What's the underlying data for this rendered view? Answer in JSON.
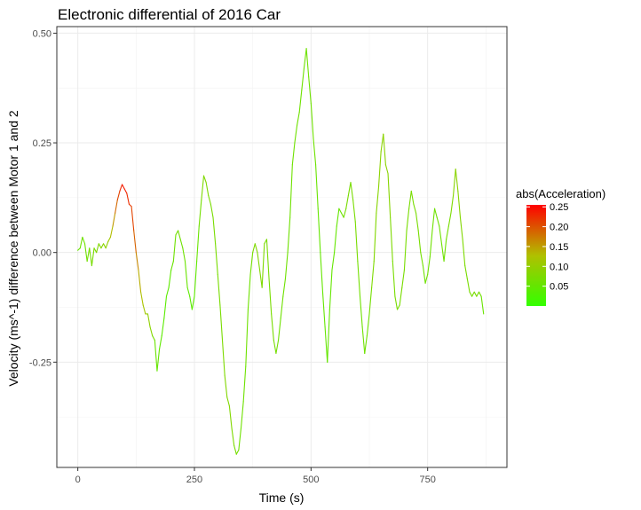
{
  "chart_data": {
    "type": "line",
    "title": "Electronic differential of 2016 Car",
    "xlabel": "Time (s)",
    "ylabel": "Velocity (ms^-1) difference between Motor 1 and 2",
    "xlim": [
      -45,
      920
    ],
    "ylim": [
      -0.49,
      0.515
    ],
    "x_ticks": [
      0,
      250,
      500,
      750
    ],
    "x_tick_labels": [
      "0",
      "250",
      "500",
      "750"
    ],
    "y_ticks": [
      -0.25,
      0.0,
      0.25,
      0.5
    ],
    "y_tick_labels": [
      "-0.25",
      "0.00",
      "0.25",
      "0.50"
    ],
    "grid": true,
    "legend": {
      "title": "abs(Acceleration)",
      "placement": "right",
      "ticks": [
        0.05,
        0.1,
        0.15,
        0.2,
        0.25
      ],
      "tick_labels": [
        "0.05",
        "0.10",
        "0.15",
        "0.20",
        "0.25"
      ],
      "range": [
        0.0,
        0.255
      ],
      "low_color": "#33ff00",
      "mid_color": "#b0c000",
      "high_color": "#ff0000"
    },
    "series": [
      {
        "points": [
          [
            0,
            0.005,
            0.05
          ],
          [
            5,
            0.01,
            0.06
          ],
          [
            10,
            0.035,
            0.06
          ],
          [
            15,
            0.02,
            0.06
          ],
          [
            20,
            -0.02,
            0.06
          ],
          [
            25,
            0.01,
            0.07
          ],
          [
            30,
            -0.03,
            0.07
          ],
          [
            35,
            0.01,
            0.07
          ],
          [
            40,
            0.0,
            0.08
          ],
          [
            45,
            0.02,
            0.08
          ],
          [
            50,
            0.01,
            0.08
          ],
          [
            55,
            0.02,
            0.09
          ],
          [
            60,
            0.01,
            0.09
          ],
          [
            65,
            0.025,
            0.1
          ],
          [
            70,
            0.035,
            0.12
          ],
          [
            75,
            0.06,
            0.14
          ],
          [
            80,
            0.09,
            0.17
          ],
          [
            85,
            0.12,
            0.2
          ],
          [
            90,
            0.14,
            0.22
          ],
          [
            95,
            0.155,
            0.24
          ],
          [
            100,
            0.145,
            0.24
          ],
          [
            105,
            0.135,
            0.23
          ],
          [
            110,
            0.11,
            0.22
          ],
          [
            115,
            0.105,
            0.22
          ],
          [
            120,
            0.05,
            0.2
          ],
          [
            125,
            0.0,
            0.18
          ],
          [
            130,
            -0.04,
            0.15
          ],
          [
            135,
            -0.09,
            0.13
          ],
          [
            140,
            -0.12,
            0.12
          ],
          [
            145,
            -0.14,
            0.11
          ],
          [
            150,
            -0.14,
            0.1
          ],
          [
            155,
            -0.17,
            0.09
          ],
          [
            160,
            -0.19,
            0.08
          ],
          [
            165,
            -0.2,
            0.06
          ],
          [
            170,
            -0.27,
            0.05
          ],
          [
            175,
            -0.22,
            0.05
          ],
          [
            180,
            -0.19,
            0.04
          ],
          [
            185,
            -0.15,
            0.04
          ],
          [
            190,
            -0.1,
            0.04
          ],
          [
            195,
            -0.08,
            0.04
          ],
          [
            200,
            -0.04,
            0.05
          ],
          [
            205,
            -0.02,
            0.06
          ],
          [
            210,
            0.04,
            0.06
          ],
          [
            215,
            0.05,
            0.07
          ],
          [
            220,
            0.03,
            0.06
          ],
          [
            225,
            0.01,
            0.06
          ],
          [
            230,
            -0.02,
            0.06
          ],
          [
            235,
            -0.08,
            0.05
          ],
          [
            240,
            -0.1,
            0.04
          ],
          [
            245,
            -0.13,
            0.04
          ],
          [
            250,
            -0.1,
            0.04
          ],
          [
            255,
            -0.02,
            0.05
          ],
          [
            260,
            0.06,
            0.06
          ],
          [
            265,
            0.12,
            0.07
          ],
          [
            270,
            0.175,
            0.08
          ],
          [
            275,
            0.16,
            0.08
          ],
          [
            280,
            0.13,
            0.07
          ],
          [
            285,
            0.11,
            0.07
          ],
          [
            290,
            0.08,
            0.07
          ],
          [
            295,
            0.02,
            0.07
          ],
          [
            300,
            -0.05,
            0.07
          ],
          [
            305,
            -0.12,
            0.07
          ],
          [
            310,
            -0.2,
            0.07
          ],
          [
            315,
            -0.28,
            0.08
          ],
          [
            320,
            -0.33,
            0.08
          ],
          [
            325,
            -0.35,
            0.08
          ],
          [
            330,
            -0.4,
            0.08
          ],
          [
            335,
            -0.44,
            0.07
          ],
          [
            340,
            -0.46,
            0.07
          ],
          [
            345,
            -0.45,
            0.06
          ],
          [
            350,
            -0.4,
            0.06
          ],
          [
            355,
            -0.34,
            0.06
          ],
          [
            360,
            -0.26,
            0.06
          ],
          [
            365,
            -0.13,
            0.06
          ],
          [
            370,
            -0.05,
            0.06
          ],
          [
            375,
            0.0,
            0.07
          ],
          [
            380,
            0.02,
            0.08
          ],
          [
            385,
            0.0,
            0.08
          ],
          [
            390,
            -0.04,
            0.08
          ],
          [
            395,
            -0.08,
            0.08
          ],
          [
            400,
            0.02,
            0.07
          ],
          [
            405,
            0.03,
            0.07
          ],
          [
            410,
            -0.06,
            0.07
          ],
          [
            415,
            -0.14,
            0.07
          ],
          [
            420,
            -0.2,
            0.07
          ],
          [
            425,
            -0.23,
            0.07
          ],
          [
            430,
            -0.2,
            0.06
          ],
          [
            435,
            -0.15,
            0.06
          ],
          [
            440,
            -0.1,
            0.06
          ],
          [
            445,
            -0.06,
            0.06
          ],
          [
            450,
            0.0,
            0.06
          ],
          [
            455,
            0.08,
            0.06
          ],
          [
            460,
            0.2,
            0.06
          ],
          [
            465,
            0.25,
            0.06
          ],
          [
            470,
            0.29,
            0.06
          ],
          [
            475,
            0.32,
            0.06
          ],
          [
            480,
            0.37,
            0.06
          ],
          [
            485,
            0.42,
            0.06
          ],
          [
            490,
            0.465,
            0.06
          ],
          [
            495,
            0.4,
            0.06
          ],
          [
            500,
            0.34,
            0.06
          ],
          [
            505,
            0.26,
            0.06
          ],
          [
            510,
            0.2,
            0.06
          ],
          [
            515,
            0.1,
            0.05
          ],
          [
            520,
            0.0,
            0.05
          ],
          [
            525,
            -0.09,
            0.05
          ],
          [
            530,
            -0.17,
            0.05
          ],
          [
            535,
            -0.25,
            0.05
          ],
          [
            540,
            -0.13,
            0.05
          ],
          [
            545,
            -0.04,
            0.05
          ],
          [
            550,
            0.0,
            0.05
          ],
          [
            555,
            0.06,
            0.05
          ],
          [
            560,
            0.1,
            0.05
          ],
          [
            565,
            0.09,
            0.06
          ],
          [
            570,
            0.08,
            0.06
          ],
          [
            575,
            0.1,
            0.07
          ],
          [
            580,
            0.13,
            0.07
          ],
          [
            585,
            0.16,
            0.07
          ],
          [
            590,
            0.12,
            0.07
          ],
          [
            595,
            0.07,
            0.07
          ],
          [
            600,
            -0.02,
            0.07
          ],
          [
            605,
            -0.1,
            0.06
          ],
          [
            610,
            -0.17,
            0.06
          ],
          [
            615,
            -0.23,
            0.06
          ],
          [
            620,
            -0.19,
            0.06
          ],
          [
            625,
            -0.14,
            0.06
          ],
          [
            630,
            -0.08,
            0.07
          ],
          [
            635,
            -0.02,
            0.08
          ],
          [
            640,
            0.09,
            0.08
          ],
          [
            645,
            0.15,
            0.09
          ],
          [
            650,
            0.23,
            0.09
          ],
          [
            655,
            0.27,
            0.09
          ],
          [
            660,
            0.2,
            0.09
          ],
          [
            665,
            0.18,
            0.09
          ],
          [
            670,
            0.08,
            0.08
          ],
          [
            675,
            -0.02,
            0.07
          ],
          [
            680,
            -0.1,
            0.07
          ],
          [
            685,
            -0.13,
            0.07
          ],
          [
            690,
            -0.12,
            0.07
          ],
          [
            695,
            -0.08,
            0.07
          ],
          [
            700,
            -0.04,
            0.07
          ],
          [
            705,
            0.05,
            0.07
          ],
          [
            710,
            0.1,
            0.07
          ],
          [
            715,
            0.14,
            0.07
          ],
          [
            720,
            0.11,
            0.07
          ],
          [
            725,
            0.09,
            0.07
          ],
          [
            730,
            0.05,
            0.07
          ],
          [
            735,
            0.0,
            0.07
          ],
          [
            740,
            -0.03,
            0.06
          ],
          [
            745,
            -0.07,
            0.06
          ],
          [
            750,
            -0.05,
            0.06
          ],
          [
            755,
            -0.01,
            0.06
          ],
          [
            760,
            0.05,
            0.06
          ],
          [
            765,
            0.1,
            0.06
          ],
          [
            770,
            0.08,
            0.06
          ],
          [
            775,
            0.06,
            0.06
          ],
          [
            780,
            0.02,
            0.06
          ],
          [
            785,
            -0.02,
            0.06
          ],
          [
            790,
            0.03,
            0.06
          ],
          [
            795,
            0.06,
            0.07
          ],
          [
            800,
            0.09,
            0.07
          ],
          [
            805,
            0.13,
            0.08
          ],
          [
            810,
            0.19,
            0.09
          ],
          [
            815,
            0.14,
            0.09
          ],
          [
            820,
            0.08,
            0.08
          ],
          [
            825,
            0.03,
            0.08
          ],
          [
            830,
            -0.03,
            0.07
          ],
          [
            835,
            -0.06,
            0.07
          ],
          [
            840,
            -0.09,
            0.07
          ],
          [
            845,
            -0.1,
            0.07
          ],
          [
            850,
            -0.09,
            0.07
          ],
          [
            855,
            -0.1,
            0.07
          ],
          [
            860,
            -0.09,
            0.07
          ],
          [
            865,
            -0.1,
            0.06
          ],
          [
            870,
            -0.14,
            0.05
          ]
        ]
      }
    ]
  }
}
